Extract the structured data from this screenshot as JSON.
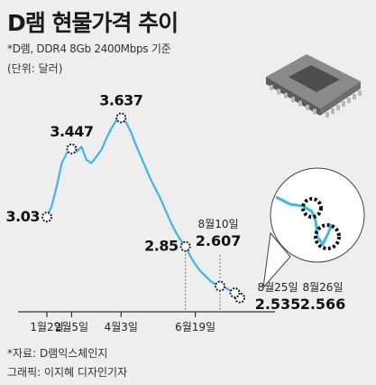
{
  "header": {
    "title": "D램 현물가격 추이",
    "subtitle": "*D램, DDR4 8Gb 2400Mbps 기준",
    "unit": "(단위: 달러)"
  },
  "footer": {
    "source": "*자료: D램익스체인지",
    "credit": "그래픽: 이지혜 디자인기자"
  },
  "colors": {
    "line": "#3bb8e8",
    "marker": "#222222",
    "axis": "#333333",
    "background": "#eeeeee"
  },
  "chart_data": {
    "type": "line",
    "title": "D램 현물가격 추이",
    "xlabel": "",
    "ylabel": "",
    "x_ticks": [
      "1월2일",
      "2월5일",
      "4월3일",
      "6월19일"
    ],
    "series": [
      {
        "values": [
          3.03,
          3.1,
          3.22,
          3.36,
          3.42,
          3.447,
          3.43,
          3.46,
          3.38,
          3.36,
          3.4,
          3.44,
          3.51,
          3.57,
          3.62,
          3.637,
          3.61,
          3.55,
          3.47,
          3.4,
          3.33,
          3.26,
          3.2,
          3.14,
          3.07,
          3.0,
          2.94,
          2.89,
          2.85,
          2.79,
          2.74,
          2.7,
          2.67,
          2.64,
          2.62,
          2.607,
          2.6,
          2.58,
          2.566,
          2.535
        ]
      }
    ],
    "annotations": [
      {
        "label": "3.03",
        "index": 0,
        "value": 3.03
      },
      {
        "label": "3.447",
        "index": 5,
        "value": 3.447
      },
      {
        "label": "3.637",
        "index": 15,
        "value": 3.637
      },
      {
        "label": "2.85",
        "index": 28,
        "value": 2.85
      },
      {
        "label": "8월10일",
        "sublabel": "2.607",
        "index": 35,
        "value": 2.607
      },
      {
        "label": "8월25일",
        "sublabel": "2.535",
        "index": 39,
        "value": 2.535
      },
      {
        "label": "8월26일",
        "sublabel": "2.566",
        "index": 38,
        "value": 2.566
      }
    ],
    "ylim": [
      2.45,
      3.75
    ],
    "grid": false,
    "legend": "none"
  }
}
